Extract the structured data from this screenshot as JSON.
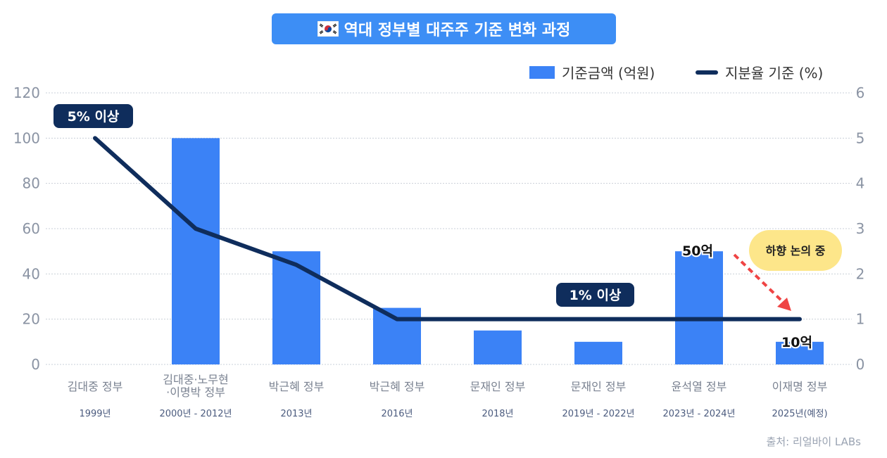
{
  "title": "역대 정부별 대주주 기준 변화 과정",
  "source": "출처: 리얼바이 LABs",
  "colors": {
    "bar": "#3b82f6",
    "line": "#0f2d5c",
    "title_bg": "#3d8ef5",
    "grid": "#c9cfd8",
    "highlight_bg": "#fde68a",
    "arrow": "#ef4444"
  },
  "legend": {
    "bar_label": "기준금액 (억원)",
    "line_label": "지분율 기준 (%)"
  },
  "annotations": {
    "callout_5pct": "5% 이상",
    "callout_1pct": "1% 이상",
    "label_50": "50억",
    "label_10": "10억",
    "discussion": "하향 논의 중"
  },
  "chart_data": {
    "type": "bar",
    "categories": [
      "김대중 정부",
      "김대중·노무현\n·이명박 정부",
      "박근혜 정부",
      "박근혜 정부",
      "문재인 정부",
      "문재인 정부",
      "윤석열 정부",
      "이재명 정부"
    ],
    "periods": [
      "1999년",
      "2000년 - 2012년",
      "2013년",
      "2016년",
      "2018년",
      "2019년 - 2022년",
      "2023년 - 2024년",
      "2025년(예정)"
    ],
    "series": [
      {
        "name": "기준금액 (억원)",
        "type": "bar",
        "axis": "left",
        "values": [
          0,
          100,
          50,
          25,
          15,
          10,
          50,
          10
        ]
      },
      {
        "name": "지분율 기준 (%)",
        "type": "line",
        "axis": "right",
        "values": [
          5,
          3,
          2.2,
          1,
          1,
          1,
          1,
          1
        ]
      }
    ],
    "y_left": {
      "ylim": [
        0,
        120
      ],
      "ticks": [
        0,
        20,
        40,
        60,
        80,
        100,
        120
      ]
    },
    "y_right": {
      "ylim": [
        0,
        6
      ],
      "ticks": [
        0,
        1,
        2,
        3,
        4,
        5,
        6
      ]
    },
    "grid": true,
    "legend_position": "top-right"
  }
}
